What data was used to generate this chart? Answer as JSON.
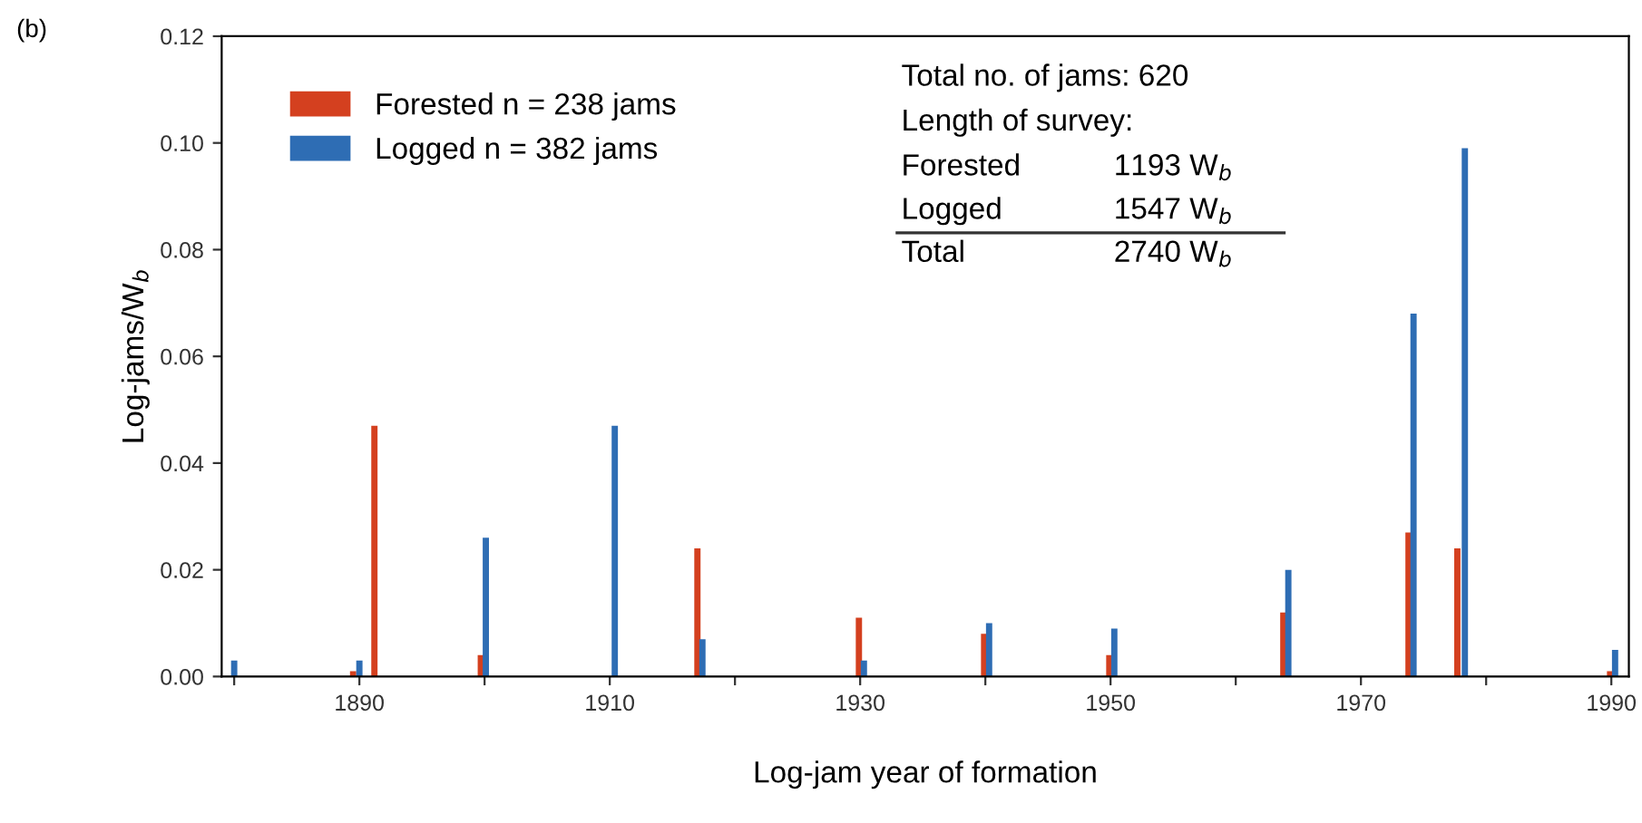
{
  "chart_data": {
    "type": "bar",
    "xlabel": "Log-jam year of formation",
    "ylabel": "Log-jams/W$_{b}$",
    "series": [
      {
        "name": "Forested n = 238 jams",
        "color": "#d4401f",
        "x": [
          1889.5,
          1891.2,
          1899.7,
          1917.0,
          1929.9,
          1939.9,
          1949.9,
          1963.8,
          1973.8,
          1977.7,
          1989.9
        ],
        "values": [
          0.001,
          0.047,
          0.004,
          0.024,
          0.011,
          0.008,
          0.004,
          0.012,
          0.027,
          0.024,
          0.001
        ]
      },
      {
        "name": "Logged n = 382 jams",
        "color": "#2e6db4",
        "x": [
          1880.0,
          1890.0,
          1900.1,
          1910.4,
          1917.4,
          1930.3,
          1940.3,
          1950.3,
          1964.2,
          1974.2,
          1978.3,
          1990.3
        ],
        "values": [
          0.003,
          0.003,
          0.026,
          0.047,
          0.007,
          0.003,
          0.01,
          0.009,
          0.02,
          0.068,
          0.099,
          0.005
        ]
      }
    ],
    "xlim": [
      1879,
      1991.4
    ],
    "ylim": [
      0,
      0.12
    ],
    "xticks": [
      {
        "value": 1880,
        "label": null
      },
      1890,
      {
        "value": 1900,
        "label": null
      },
      1910,
      {
        "value": 1920,
        "label": null
      },
      1930,
      {
        "value": 1940,
        "label": null
      },
      1950,
      {
        "value": 1960,
        "label": null
      },
      1970,
      {
        "value": 1980,
        "label": null
      },
      1990
    ],
    "yticks": [
      {
        "value": 0,
        "label": "0.00"
      },
      {
        "value": 0.02,
        "label": "0.02"
      },
      {
        "value": 0.04,
        "label": "0.04"
      },
      {
        "value": 0.06,
        "label": "0.06"
      },
      {
        "value": 0.08,
        "label": "0.08"
      },
      {
        "value": 0.1,
        "label": "0.10"
      },
      {
        "value": 0.12,
        "label": "0.12"
      }
    ],
    "grid": false,
    "legend": "top left",
    "annotations": [
      "(b)",
      "Total no. of jams: 620",
      "Length of survey:",
      "Forested",
      "1193 W$_{b}$",
      "Logged",
      "1547 W$_{b}$",
      "Total",
      "2740 W$_{b}$"
    ]
  }
}
